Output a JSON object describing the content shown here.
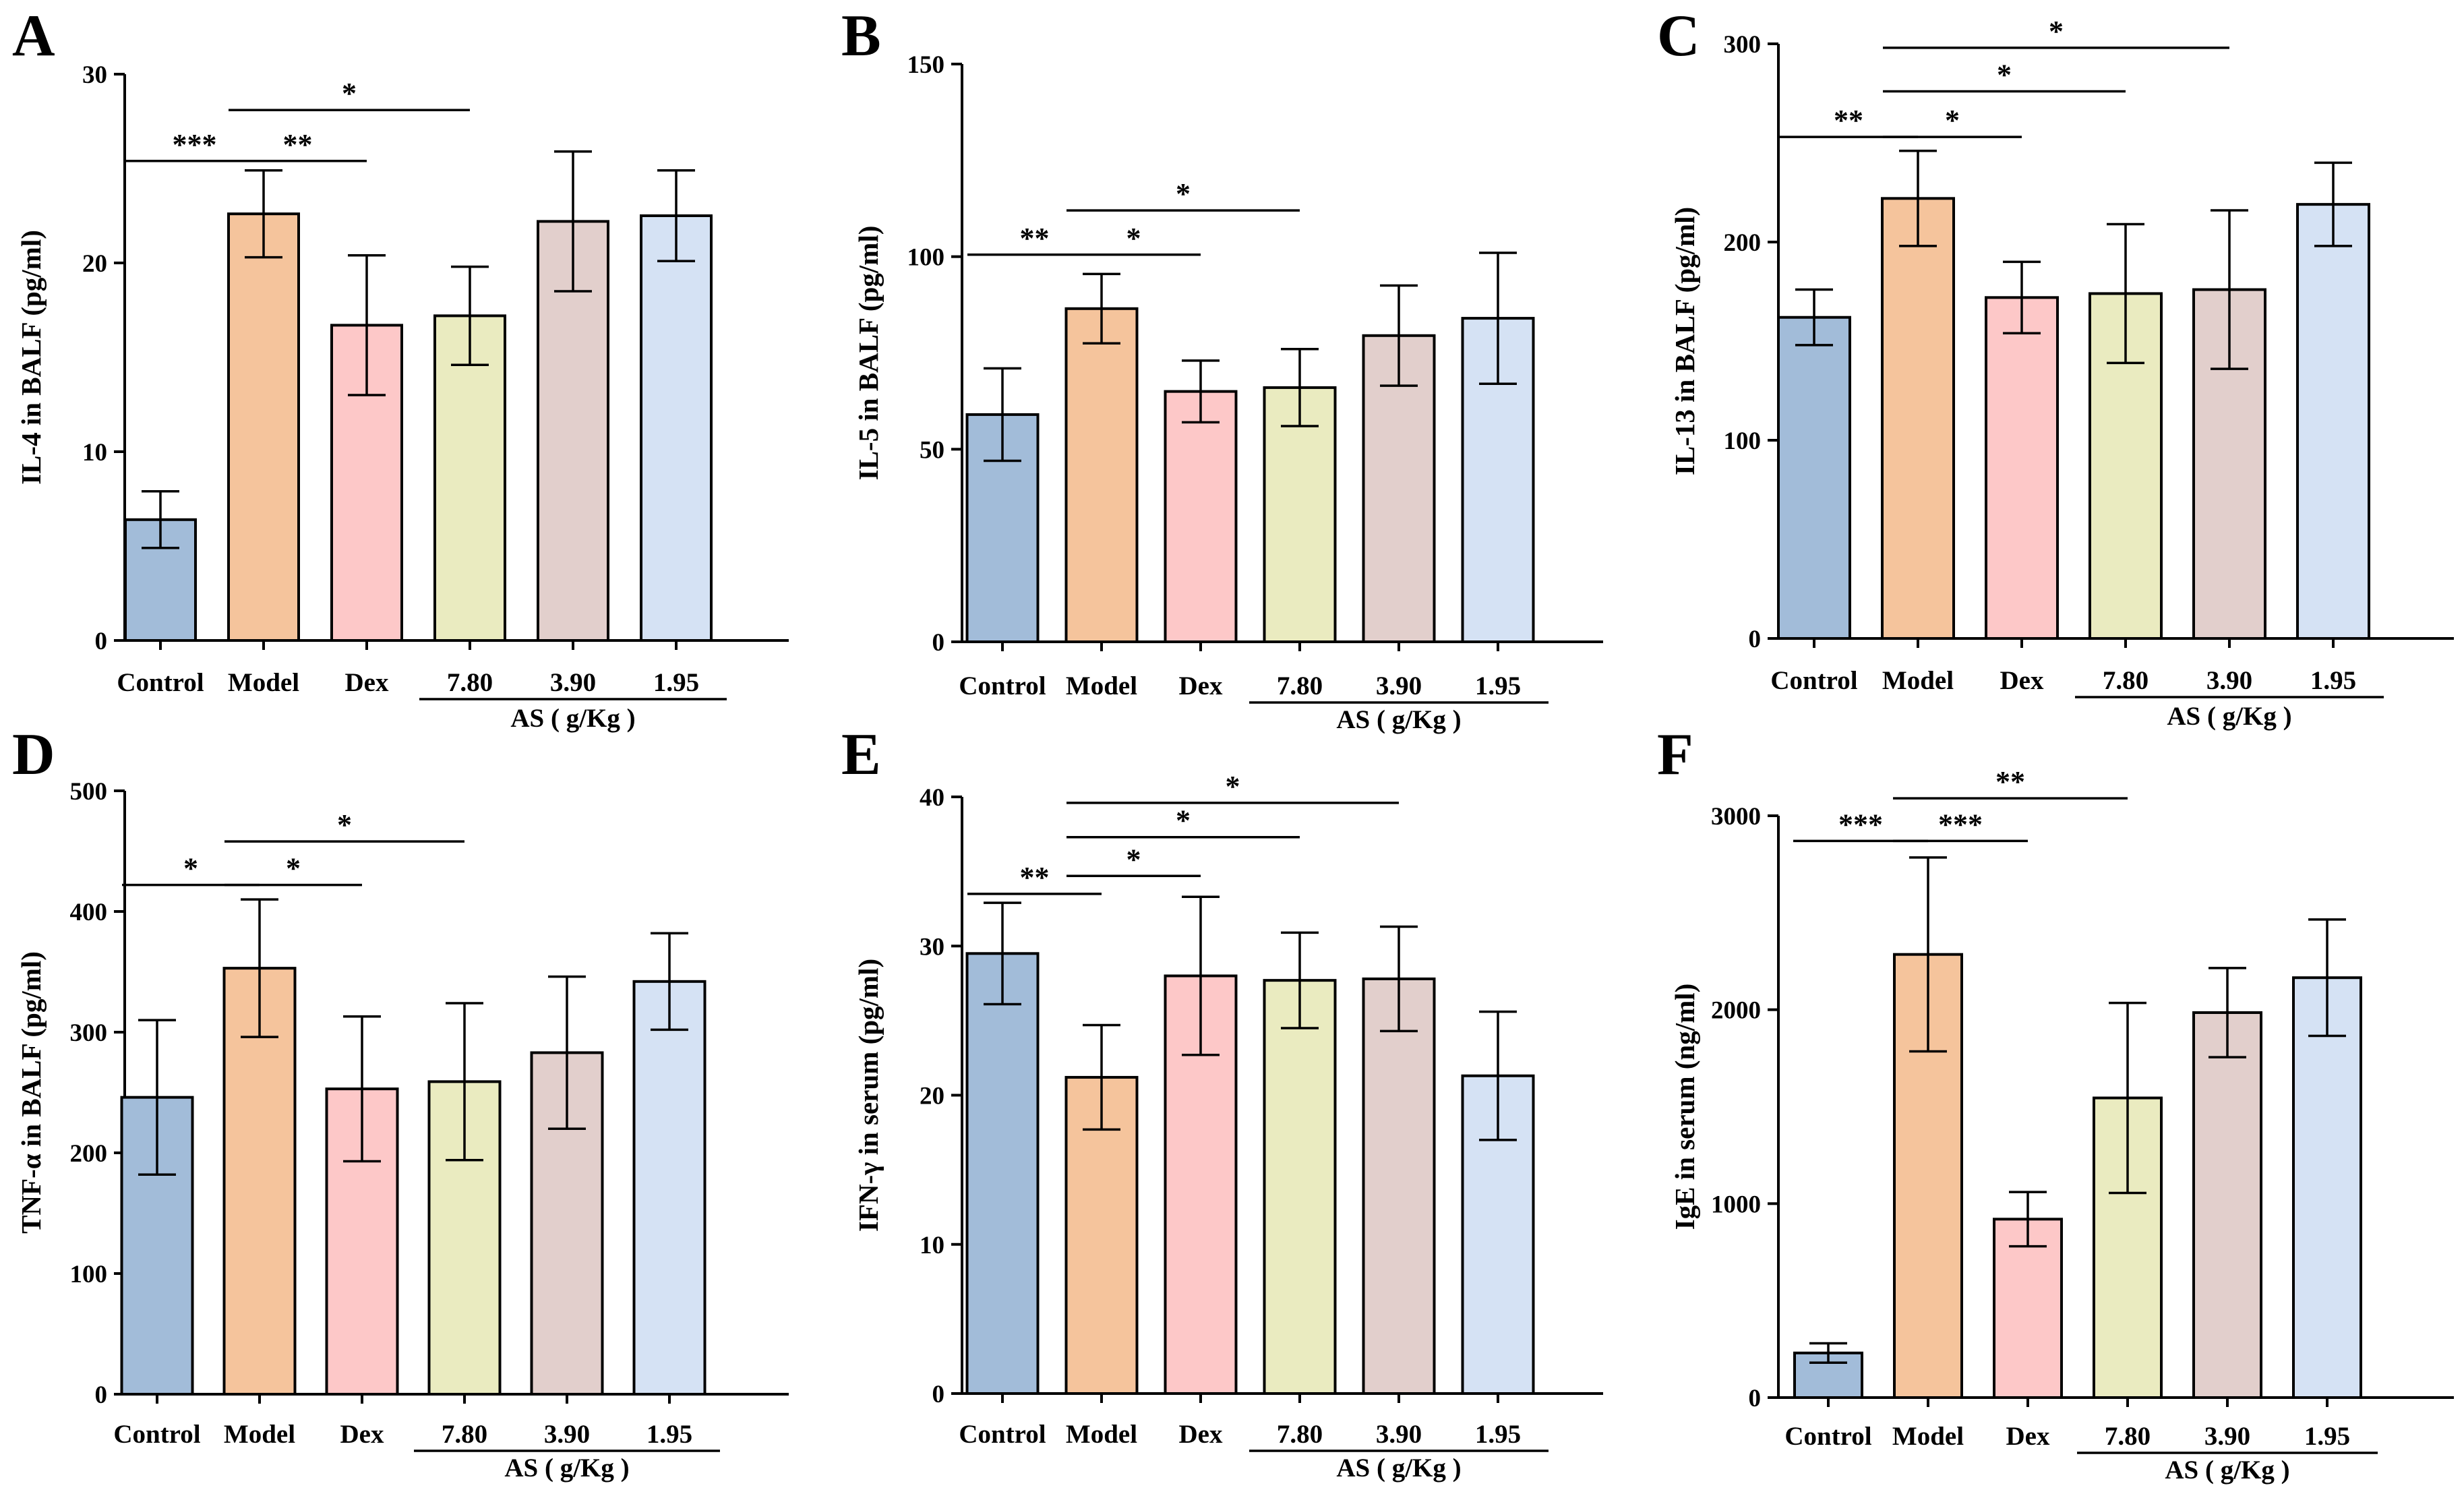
{
  "colors": {
    "Control": "#a2bcd9",
    "Model": "#f5c49c",
    "Dex": "#fdc8c8",
    "7.80": "#eaebc0",
    "3.90": "#e2cfcc",
    "1.95": "#d5e2f4",
    "stroke": "#000000"
  },
  "categories": [
    "Control",
    "Model",
    "Dex",
    "7.80",
    "3.90",
    "1.95"
  ],
  "group_label": "AS ( g/Kg )",
  "chart_data": [
    {
      "panel": "A",
      "type": "bar",
      "ylabel": "IL-4 in BALF (pg/ml)",
      "ylim": [
        0,
        30
      ],
      "yticks": [
        0,
        10,
        20,
        30
      ],
      "categories": [
        "Control",
        "Model",
        "Dex",
        "7.80",
        "3.90",
        "1.95"
      ],
      "values": [
        6.4,
        22.6,
        16.7,
        17.2,
        22.2,
        22.5
      ],
      "errors": [
        1.5,
        2.3,
        3.7,
        2.6,
        3.7,
        2.4
      ],
      "significance": [
        {
          "from": 0,
          "to": 1,
          "label": "***",
          "y": 25.4
        },
        {
          "from": 1,
          "to": 2,
          "label": "**",
          "y": 25.4
        },
        {
          "from": 1,
          "to": 3,
          "label": "*",
          "y": 28.1
        }
      ]
    },
    {
      "panel": "B",
      "type": "bar",
      "ylabel": "IL-5 in BALF (pg/ml)",
      "ylim": [
        0,
        150
      ],
      "yticks": [
        0,
        50,
        100,
        150
      ],
      "categories": [
        "Control",
        "Model",
        "Dex",
        "7.80",
        "3.90",
        "1.95"
      ],
      "values": [
        59,
        86.5,
        65,
        66,
        79.5,
        84
      ],
      "errors": [
        12,
        9,
        8,
        10,
        13,
        17
      ],
      "significance": [
        {
          "from": 0,
          "to": 1,
          "label": "**",
          "y": 100.5
        },
        {
          "from": 1,
          "to": 2,
          "label": "*",
          "y": 100.5
        },
        {
          "from": 1,
          "to": 3,
          "label": "*",
          "y": 112
        }
      ]
    },
    {
      "panel": "C",
      "type": "bar",
      "ylabel": "IL-13 in BALF (pg/ml)",
      "ylim": [
        0,
        300
      ],
      "yticks": [
        0,
        100,
        200,
        300
      ],
      "categories": [
        "Control",
        "Model",
        "Dex",
        "7.80",
        "3.90",
        "1.95"
      ],
      "values": [
        162,
        222,
        172,
        174,
        176,
        219
      ],
      "errors": [
        14,
        24,
        18,
        35,
        40,
        21
      ],
      "significance": [
        {
          "from": 0,
          "to": 1,
          "label": "**",
          "y": 253
        },
        {
          "from": 1,
          "to": 2,
          "label": "*",
          "y": 253
        },
        {
          "from": 1,
          "to": 3,
          "label": "*",
          "y": 276
        },
        {
          "from": 1,
          "to": 4,
          "label": "*",
          "y": 298
        }
      ]
    },
    {
      "panel": "D",
      "type": "bar",
      "ylabel": "TNF-α in BALF (pg/ml)",
      "ylim": [
        0,
        500
      ],
      "yticks": [
        0,
        100,
        200,
        300,
        400,
        500
      ],
      "categories": [
        "Control",
        "Model",
        "Dex",
        "7.80",
        "3.90",
        "1.95"
      ],
      "values": [
        246,
        353,
        253,
        259,
        283,
        342
      ],
      "errors": [
        64,
        57,
        60,
        65,
        63,
        40
      ],
      "significance": [
        {
          "from": 0,
          "to": 1,
          "label": "*",
          "y": 422
        },
        {
          "from": 1,
          "to": 2,
          "label": "*",
          "y": 422
        },
        {
          "from": 1,
          "to": 3,
          "label": "*",
          "y": 458
        }
      ]
    },
    {
      "panel": "E",
      "type": "bar",
      "ylabel": "IFN-γ in serum (pg/ml)",
      "ylim": [
        0,
        40
      ],
      "yticks": [
        0,
        10,
        20,
        30,
        40
      ],
      "categories": [
        "Control",
        "Model",
        "Dex",
        "7.80",
        "3.90",
        "1.95"
      ],
      "values": [
        29.5,
        21.2,
        28,
        27.7,
        27.8,
        21.3
      ],
      "errors": [
        3.4,
        3.5,
        5.3,
        3.2,
        3.5,
        4.3
      ],
      "significance": [
        {
          "from": 0,
          "to": 1,
          "label": "**",
          "y": 33.5
        },
        {
          "from": 1,
          "to": 2,
          "label": "*",
          "y": 34.7
        },
        {
          "from": 1,
          "to": 3,
          "label": "*",
          "y": 37.3
        },
        {
          "from": 1,
          "to": 4,
          "label": "*",
          "y": 39.6
        }
      ]
    },
    {
      "panel": "F",
      "type": "bar",
      "ylabel": "IgE in serum (ng/ml)",
      "ylim": [
        0,
        3000
      ],
      "yticks": [
        0,
        1000,
        2000,
        3000
      ],
      "categories": [
        "Control",
        "Model",
        "Dex",
        "7.80",
        "3.90",
        "1.95"
      ],
      "values": [
        230,
        2285,
        920,
        1545,
        1985,
        2165
      ],
      "errors": [
        50,
        500,
        140,
        490,
        230,
        300
      ],
      "significance": [
        {
          "from": 0,
          "to": 1,
          "label": "***",
          "y": 2870
        },
        {
          "from": 1,
          "to": 2,
          "label": "***",
          "y": 2870
        },
        {
          "from": 1,
          "to": 3,
          "label": "**",
          "y": 3090
        }
      ]
    }
  ]
}
